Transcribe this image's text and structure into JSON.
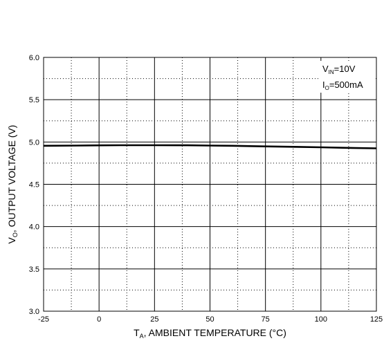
{
  "chart_data": {
    "type": "line",
    "xlabel": {
      "main": "T",
      "sub": "A",
      "rest": ", AMBIENT TEMPERATURE (°C)"
    },
    "ylabel": {
      "main": "V",
      "sub": "O",
      "rest": ", OUTPUT VOLTAGE  (V)"
    },
    "xlim": [
      -25,
      125
    ],
    "ylim": [
      3.0,
      6.0
    ],
    "x_ticks": [
      "-25",
      "0",
      "25",
      "50",
      "75",
      "100",
      "125"
    ],
    "y_ticks": [
      "3.0",
      "3.5",
      "4.0",
      "4.5",
      "5.0",
      "5.5",
      "6.0"
    ],
    "grid": {
      "major": true,
      "minor_dotted": true
    },
    "annotations": [
      {
        "main": "V",
        "sub": "IN",
        "rest": "=10V"
      },
      {
        "main": "I",
        "sub": "O",
        "rest": "=500mA"
      }
    ],
    "series": [
      {
        "x": [
          -25,
          -10,
          0,
          10,
          25,
          40,
          50,
          60,
          75,
          90,
          100,
          110,
          125
        ],
        "y": [
          4.955,
          4.958,
          4.96,
          4.962,
          4.962,
          4.961,
          4.958,
          4.955,
          4.948,
          4.942,
          4.937,
          4.932,
          4.925
        ]
      }
    ]
  }
}
